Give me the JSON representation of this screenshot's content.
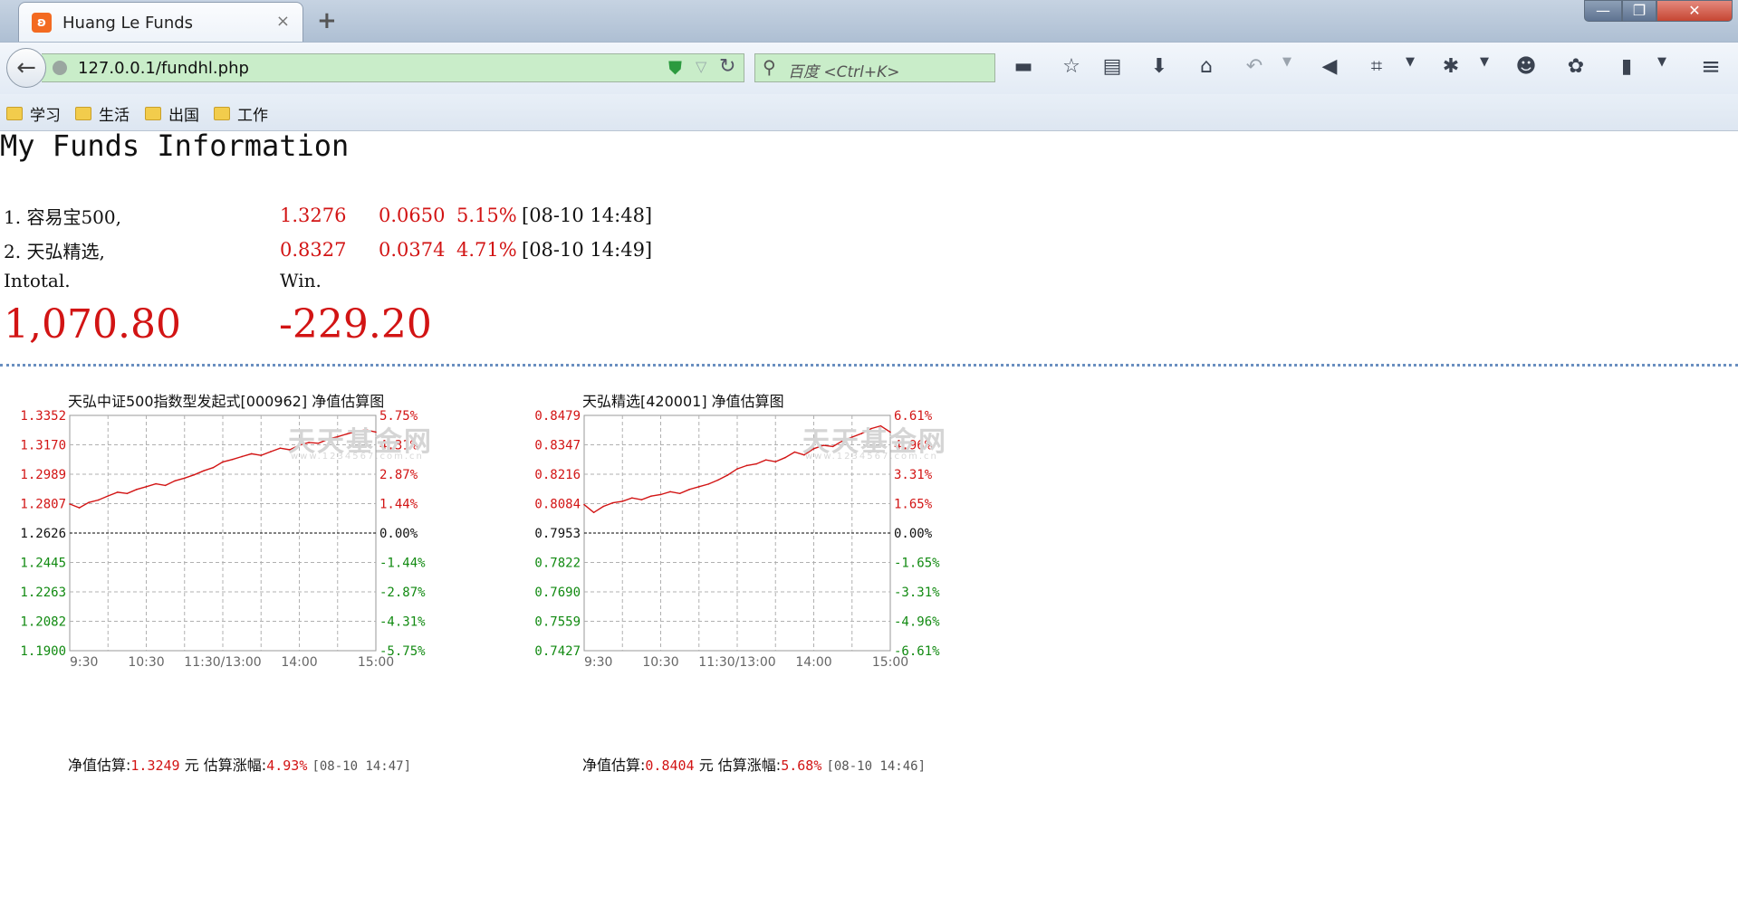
{
  "browser": {
    "tab_title": "Huang Le Funds",
    "tab_close": "×",
    "new_tab": "+",
    "url": "127.0.0.1/fundhl.php",
    "search_placeholder": "百度 <Ctrl+K>",
    "window_buttons": {
      "minimize": "—",
      "maximize": "❐",
      "close": "✕"
    }
  },
  "bookmarks": [
    {
      "label": "学习"
    },
    {
      "label": "生活"
    },
    {
      "label": "出国"
    },
    {
      "label": "工作"
    }
  ],
  "page": {
    "heading": "My Funds Information",
    "funds": [
      {
        "name": "1. 容易宝500,",
        "nav": "1.3276",
        "change": "0.0650",
        "pct": "5.15%",
        "time": "[08-10 14:48]"
      },
      {
        "name": "2. 天弘精选,",
        "nav": "0.8327",
        "change": "0.0374",
        "pct": "4.71%",
        "time": "[08-10 14:49]"
      }
    ],
    "total_label": "Intotal.",
    "total_value": "1,070.80",
    "win_label": "Win.",
    "win_value": "-229.20"
  },
  "colors": {
    "up": "#d21414",
    "down": "#118a11",
    "grid": "#999999",
    "line": "#d21414",
    "accent_border": "#6a8fc0"
  },
  "chart_data": [
    {
      "type": "line",
      "title": "天弘中证500指数型发起式[000962] 净值估算图",
      "watermark": "天天基金网",
      "watermark_url": "www.1234567.com.cn",
      "y_left_ticks": [
        "1.3352",
        "1.3170",
        "1.2989",
        "1.2807",
        "1.2626",
        "1.2445",
        "1.2263",
        "1.2082",
        "1.1900"
      ],
      "y_right_ticks": [
        "5.75%",
        "4.31%",
        "2.87%",
        "1.44%",
        "0.00%",
        "-1.44%",
        "-2.87%",
        "-4.31%",
        "-5.75%"
      ],
      "x_ticks": [
        "9:30",
        "10:30",
        "11:30/13:00",
        "14:00",
        "15:00"
      ],
      "ylim": [
        1.19,
        1.3352
      ],
      "baseline": 1.2626,
      "x": [
        0,
        0.25,
        0.5,
        0.75,
        1.0,
        1.25,
        1.5,
        1.75,
        2.0,
        2.25,
        2.5,
        2.75,
        3.0,
        3.25,
        3.5,
        3.75,
        4.0,
        4.25,
        4.5,
        4.75,
        5.0,
        5.25,
        5.5,
        5.75,
        6.0,
        6.25,
        6.5,
        6.75,
        7.0,
        7.25,
        7.5,
        7.75,
        8.0
      ],
      "values": [
        1.2805,
        1.2782,
        1.2815,
        1.283,
        1.2855,
        1.2878,
        1.287,
        1.2895,
        1.2912,
        1.293,
        1.292,
        1.2948,
        1.2965,
        1.2985,
        1.301,
        1.303,
        1.3065,
        1.308,
        1.3098,
        1.3115,
        1.3105,
        1.3128,
        1.315,
        1.314,
        1.3168,
        1.3185,
        1.318,
        1.3205,
        1.322,
        1.3238,
        1.3255,
        1.3262,
        1.3249
      ],
      "footer": {
        "nav_label": "净值估算:",
        "nav_value": "1.3249",
        "unit": "元",
        "chg_label": "估算涨幅:",
        "chg_value": "4.93%",
        "time": "[08-10 14:47]"
      }
    },
    {
      "type": "line",
      "title": "天弘精选[420001] 净值估算图",
      "watermark": "天天基金网",
      "watermark_url": "www.1234567.com.cn",
      "y_left_ticks": [
        "0.8479",
        "0.8347",
        "0.8216",
        "0.8084",
        "0.7953",
        "0.7822",
        "0.7690",
        "0.7559",
        "0.7427"
      ],
      "y_right_ticks": [
        "6.61%",
        "4.96%",
        "3.31%",
        "1.65%",
        "0.00%",
        "-1.65%",
        "-3.31%",
        "-4.96%",
        "-6.61%"
      ],
      "x_ticks": [
        "9:30",
        "10:30",
        "11:30/13:00",
        "14:00",
        "15:00"
      ],
      "ylim": [
        0.7427,
        0.8479
      ],
      "baseline": 0.7953,
      "x": [
        0,
        0.25,
        0.5,
        0.75,
        1.0,
        1.25,
        1.5,
        1.75,
        2.0,
        2.25,
        2.5,
        2.75,
        3.0,
        3.25,
        3.5,
        3.75,
        4.0,
        4.25,
        4.5,
        4.75,
        5.0,
        5.25,
        5.5,
        5.75,
        6.0,
        6.25,
        6.5,
        6.75,
        7.0,
        7.25,
        7.5,
        7.75,
        8.0
      ],
      "values": [
        0.808,
        0.8045,
        0.8072,
        0.8088,
        0.8095,
        0.811,
        0.8102,
        0.8118,
        0.8125,
        0.8138,
        0.813,
        0.8148,
        0.816,
        0.8172,
        0.819,
        0.8212,
        0.824,
        0.8255,
        0.8262,
        0.828,
        0.8272,
        0.829,
        0.8315,
        0.8302,
        0.833,
        0.8345,
        0.834,
        0.8365,
        0.8382,
        0.8398,
        0.842,
        0.8432,
        0.8404
      ],
      "footer": {
        "nav_label": "净值估算:",
        "nav_value": "0.8404",
        "unit": "元",
        "chg_label": "估算涨幅:",
        "chg_value": "5.68%",
        "time": "[08-10 14:46]"
      }
    }
  ]
}
